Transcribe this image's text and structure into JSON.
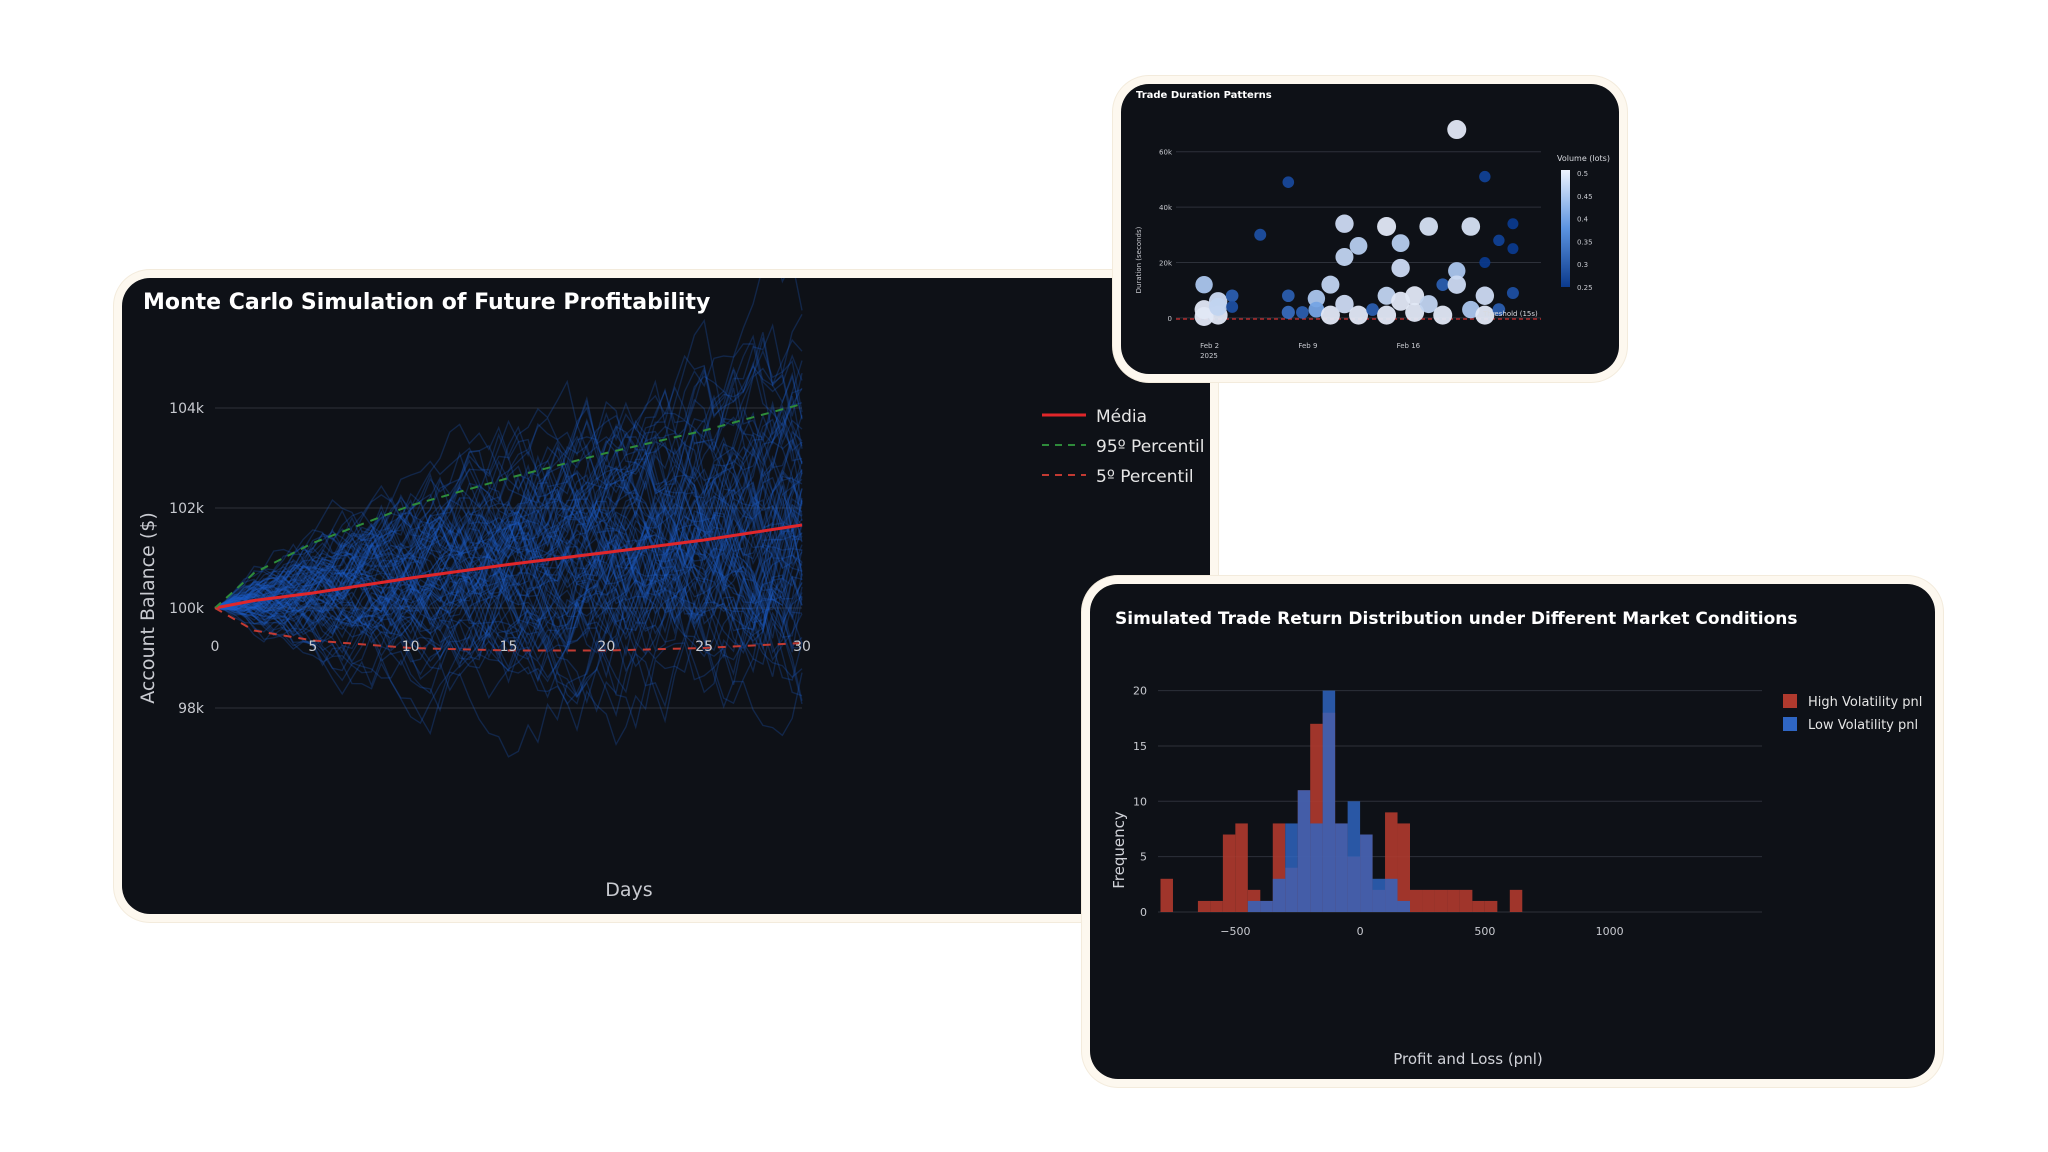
{
  "monte_carlo": {
    "title": "Monte Carlo Simulation of Future Profitability",
    "legend": [
      "Média",
      "95º Percentil",
      "5º Percentil"
    ],
    "colors": {
      "mean": "#e0262a",
      "p95": "#2e8b3a",
      "p5": "#c23a32",
      "paths": "#1e5fc8"
    }
  },
  "duration": {
    "title": "Trade Duration Patterns",
    "threshold_label": "Threshold (15s)",
    "colorbar_title": "Volume (lots)",
    "colorbar_ticks": [
      "0.5",
      "0.45",
      "0.4",
      "0.35",
      "0.3",
      "0.25"
    ],
    "x_tick_sub": "2025"
  },
  "histogram": {
    "title": "Simulated Trade Return Distribution under Different Market Conditions",
    "colors": {
      "high": "#b03a2e",
      "low": "#2f66c4"
    }
  },
  "chart_data": [
    {
      "type": "line",
      "title": "Monte Carlo Simulation of Future Profitability",
      "xlabel": "Days",
      "ylabel": "Account Balance ($)",
      "xlim": [
        0,
        30
      ],
      "ylim": [
        97800,
        105500
      ],
      "x_ticks": [
        0,
        5,
        10,
        15,
        20,
        25,
        30
      ],
      "y_ticks": [
        98000,
        100000,
        102000,
        104000
      ],
      "y_tick_labels": [
        "98k",
        "100k",
        "102k",
        "104k"
      ],
      "x": [
        0,
        2,
        5,
        10,
        15,
        20,
        25,
        30
      ],
      "series": [
        {
          "name": "Média",
          "values": [
            100000,
            100150,
            100300,
            100600,
            100870,
            101110,
            101360,
            101660
          ]
        },
        {
          "name": "95º Percentil",
          "values": [
            100000,
            100700,
            101300,
            102050,
            102600,
            103100,
            103550,
            104080
          ]
        },
        {
          "name": "5º Percentil",
          "values": [
            100000,
            99550,
            99350,
            99200,
            99150,
            99150,
            99200,
            99300
          ]
        }
      ],
      "grid": true,
      "legend_position": "top-right"
    },
    {
      "type": "scatter",
      "title": "Trade Duration Patterns",
      "xlabel": "",
      "ylabel": "Duration (seconds)",
      "x_ticks": [
        "Feb 2",
        "Feb 9",
        "Feb 16"
      ],
      "xlim": [
        "2025-01-31",
        "2025-02-26"
      ],
      "ylim": [
        -4000,
        70000
      ],
      "y_ticks": [
        0,
        20000,
        40000,
        60000
      ],
      "y_tick_labels": [
        "0",
        "20k",
        "40k",
        "60k"
      ],
      "threshold": 15,
      "colorbar_range": [
        0.25,
        0.5
      ],
      "points": [
        {
          "x": "2025-02-02",
          "y": 12000,
          "v": 0.45
        },
        {
          "x": "2025-02-02",
          "y": 3000,
          "v": 0.5
        },
        {
          "x": "2025-02-02",
          "y": 500,
          "v": 0.5
        },
        {
          "x": "2025-02-03",
          "y": 6000,
          "v": 0.48
        },
        {
          "x": "2025-02-03",
          "y": 1000,
          "v": 0.5
        },
        {
          "x": "2025-02-03",
          "y": 4000,
          "v": 0.47
        },
        {
          "x": "2025-02-04",
          "y": 8000,
          "v": 0.3
        },
        {
          "x": "2025-02-04",
          "y": 4000,
          "v": 0.28
        },
        {
          "x": "2025-02-06",
          "y": 30000,
          "v": 0.28
        },
        {
          "x": "2025-02-08",
          "y": 49000,
          "v": 0.27
        },
        {
          "x": "2025-02-08",
          "y": 8000,
          "v": 0.3
        },
        {
          "x": "2025-02-08",
          "y": 2000,
          "v": 0.32
        },
        {
          "x": "2025-02-09",
          "y": 2000,
          "v": 0.3
        },
        {
          "x": "2025-02-10",
          "y": 7000,
          "v": 0.45
        },
        {
          "x": "2025-02-10",
          "y": 3000,
          "v": 0.4
        },
        {
          "x": "2025-02-11",
          "y": 12000,
          "v": 0.47
        },
        {
          "x": "2025-02-11",
          "y": 1000,
          "v": 0.5
        },
        {
          "x": "2025-02-12",
          "y": 34000,
          "v": 0.48
        },
        {
          "x": "2025-02-12",
          "y": 22000,
          "v": 0.47
        },
        {
          "x": "2025-02-12",
          "y": 5000,
          "v": 0.48
        },
        {
          "x": "2025-02-13",
          "y": 26000,
          "v": 0.46
        },
        {
          "x": "2025-02-13",
          "y": 1000,
          "v": 0.5
        },
        {
          "x": "2025-02-14",
          "y": 3000,
          "v": 0.3
        },
        {
          "x": "2025-02-15",
          "y": 33000,
          "v": 0.5
        },
        {
          "x": "2025-02-15",
          "y": 8000,
          "v": 0.47
        },
        {
          "x": "2025-02-15",
          "y": 1000,
          "v": 0.5
        },
        {
          "x": "2025-02-16",
          "y": 27000,
          "v": 0.46
        },
        {
          "x": "2025-02-16",
          "y": 18000,
          "v": 0.48
        },
        {
          "x": "2025-02-16",
          "y": 6000,
          "v": 0.5
        },
        {
          "x": "2025-02-17",
          "y": 8000,
          "v": 0.5
        },
        {
          "x": "2025-02-17",
          "y": 2000,
          "v": 0.5
        },
        {
          "x": "2025-02-18",
          "y": 33000,
          "v": 0.49
        },
        {
          "x": "2025-02-18",
          "y": 5000,
          "v": 0.47
        },
        {
          "x": "2025-02-19",
          "y": 12000,
          "v": 0.3
        },
        {
          "x": "2025-02-19",
          "y": 1000,
          "v": 0.5
        },
        {
          "x": "2025-02-20",
          "y": 68000,
          "v": 0.5
        },
        {
          "x": "2025-02-20",
          "y": 17000,
          "v": 0.45
        },
        {
          "x": "2025-02-20",
          "y": 12000,
          "v": 0.48
        },
        {
          "x": "2025-02-21",
          "y": 33000,
          "v": 0.49
        },
        {
          "x": "2025-02-21",
          "y": 3000,
          "v": 0.45
        },
        {
          "x": "2025-02-22",
          "y": 51000,
          "v": 0.26
        },
        {
          "x": "2025-02-22",
          "y": 20000,
          "v": 0.25
        },
        {
          "x": "2025-02-22",
          "y": 8000,
          "v": 0.48
        },
        {
          "x": "2025-02-22",
          "y": 1000,
          "v": 0.5
        },
        {
          "x": "2025-02-23",
          "y": 28000,
          "v": 0.26
        },
        {
          "x": "2025-02-23",
          "y": 3000,
          "v": 0.3
        },
        {
          "x": "2025-02-24",
          "y": 34000,
          "v": 0.25
        },
        {
          "x": "2025-02-24",
          "y": 25000,
          "v": 0.25
        },
        {
          "x": "2025-02-24",
          "y": 9000,
          "v": 0.28
        }
      ]
    },
    {
      "type": "bar",
      "title": "Simulated Trade Return Distribution under Different Market Conditions",
      "xlabel": "Profit and Loss (pnl)",
      "ylabel": "Frequency",
      "bin_width": 50,
      "bin_start": -800,
      "xlim": [
        -810,
        1210
      ],
      "ylim": [
        0,
        21.5
      ],
      "x_ticks": [
        -500,
        0,
        500,
        1000
      ],
      "x_tick_labels": [
        "−500",
        "0",
        "500",
        "1000"
      ],
      "y_ticks": [
        0,
        5,
        10,
        15,
        20
      ],
      "series": [
        {
          "name": "High Volatility pnl",
          "values": [
            3,
            0,
            0,
            1,
            1,
            7,
            8,
            2,
            1,
            8,
            4,
            11,
            17,
            18,
            8,
            5,
            7,
            2,
            9,
            8,
            2,
            2,
            2,
            2,
            2,
            1,
            1,
            0,
            2
          ]
        },
        {
          "name": "Low Volatility pnl",
          "values": [
            0,
            0,
            0,
            0,
            0,
            0,
            0,
            1,
            1,
            3,
            8,
            11,
            8,
            20,
            8,
            10,
            7,
            3,
            3,
            1,
            0,
            0,
            0,
            0,
            0,
            0,
            0,
            0,
            0
          ]
        }
      ],
      "legend_position": "top-right"
    }
  ]
}
